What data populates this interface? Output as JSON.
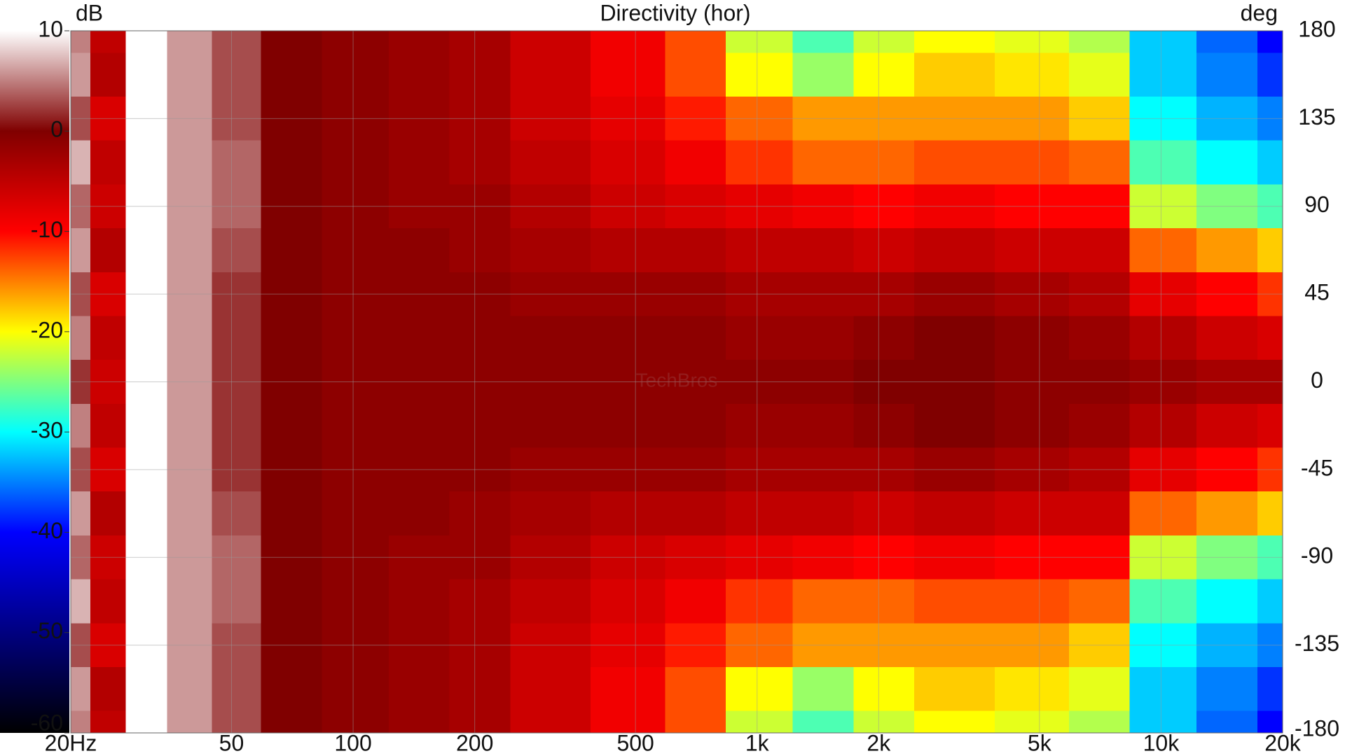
{
  "chart_data": {
    "type": "heatmap",
    "title": "Directivity (hor)",
    "colorbar_label": "dB",
    "y_label": "deg",
    "watermark": "TechBros",
    "x": [
      20,
      25,
      30,
      40,
      50,
      70,
      100,
      150,
      200,
      300,
      500,
      700,
      1000,
      1500,
      2000,
      3000,
      5000,
      7000,
      10000,
      15000,
      20000
    ],
    "y": [
      180,
      157.5,
      135,
      112.5,
      90,
      67.5,
      45,
      22.5,
      0,
      -22.5,
      -45,
      -67.5,
      -90,
      -112.5,
      -135,
      -157.5,
      -180
    ],
    "z": [
      [
        5,
        -5,
        10,
        6,
        3,
        0,
        -1,
        -2,
        -3,
        -6,
        -9,
        -13,
        -22,
        -27,
        -22,
        -20,
        -21,
        -23,
        -32,
        -36,
        -40
      ],
      [
        6,
        -4,
        10,
        6,
        3,
        0,
        -1,
        -2,
        -3,
        -6,
        -9,
        -13,
        -20,
        -24,
        -20,
        -18,
        -19,
        -21,
        -32,
        -35,
        -38
      ],
      [
        3,
        -7,
        10,
        6,
        3,
        0,
        -1,
        -2,
        -3,
        -6,
        -8,
        -11,
        -14,
        -16,
        -16,
        -16,
        -16,
        -18,
        -30,
        -33,
        -35
      ],
      [
        7,
        -5,
        10,
        6,
        4,
        0,
        -1,
        -2,
        -3,
        -5,
        -7,
        -9,
        -12,
        -14,
        -14,
        -13,
        -13,
        -14,
        -27,
        -30,
        -32
      ],
      [
        4,
        -6,
        10,
        6,
        4,
        0,
        -1,
        -2,
        -2,
        -4,
        -6,
        -7,
        -8,
        -9,
        -10,
        -9,
        -10,
        -10,
        -22,
        -25,
        -27
      ],
      [
        6,
        -4,
        10,
        6,
        3,
        0,
        -1,
        -1,
        -2,
        -3,
        -4,
        -4,
        -5,
        -5,
        -6,
        -5,
        -6,
        -6,
        -14,
        -16,
        -18
      ],
      [
        3,
        -7,
        10,
        6,
        2,
        0,
        -1,
        -1,
        -1,
        -2,
        -2,
        -2,
        -3,
        -3,
        -3,
        -2,
        -3,
        -4,
        -8,
        -10,
        -12
      ],
      [
        5,
        -5,
        10,
        6,
        2,
        0,
        -1,
        -1,
        -1,
        -1,
        -1,
        -1,
        -2,
        -2,
        -1,
        0,
        -1,
        -2,
        -4,
        -6,
        -7
      ],
      [
        2,
        -6,
        10,
        6,
        2,
        0,
        -1,
        -1,
        -1,
        -1,
        -1,
        -1,
        -1,
        -1,
        0,
        0,
        -1,
        -1,
        -2,
        -3,
        -3
      ],
      [
        5,
        -5,
        10,
        6,
        2,
        0,
        -1,
        -1,
        -1,
        -1,
        -1,
        -1,
        -2,
        -2,
        -1,
        0,
        -1,
        -2,
        -4,
        -6,
        -7
      ],
      [
        3,
        -7,
        10,
        6,
        2,
        0,
        -1,
        -1,
        -1,
        -2,
        -2,
        -2,
        -3,
        -3,
        -3,
        -2,
        -3,
        -4,
        -8,
        -10,
        -12
      ],
      [
        6,
        -4,
        10,
        6,
        3,
        0,
        -1,
        -1,
        -2,
        -3,
        -4,
        -4,
        -5,
        -5,
        -6,
        -5,
        -6,
        -6,
        -14,
        -16,
        -18
      ],
      [
        4,
        -6,
        10,
        6,
        4,
        0,
        -1,
        -2,
        -2,
        -4,
        -6,
        -7,
        -8,
        -9,
        -10,
        -9,
        -10,
        -10,
        -22,
        -25,
        -27
      ],
      [
        7,
        -5,
        10,
        6,
        4,
        0,
        -1,
        -2,
        -3,
        -5,
        -7,
        -9,
        -12,
        -14,
        -14,
        -13,
        -13,
        -14,
        -27,
        -30,
        -32
      ],
      [
        3,
        -7,
        10,
        6,
        3,
        0,
        -1,
        -2,
        -3,
        -6,
        -8,
        -11,
        -14,
        -16,
        -16,
        -16,
        -16,
        -18,
        -30,
        -33,
        -35
      ],
      [
        6,
        -4,
        10,
        6,
        3,
        0,
        -1,
        -2,
        -3,
        -6,
        -9,
        -13,
        -20,
        -24,
        -20,
        -18,
        -19,
        -21,
        -32,
        -35,
        -38
      ],
      [
        5,
        -5,
        10,
        6,
        3,
        0,
        -1,
        -2,
        -3,
        -6,
        -9,
        -13,
        -22,
        -27,
        -22,
        -20,
        -21,
        -23,
        -32,
        -36,
        -40
      ]
    ],
    "xlim": [
      20,
      20000
    ],
    "x_scale": "log",
    "xticks": [
      {
        "value": 20,
        "label": "20Hz"
      },
      50,
      100,
      200,
      500,
      {
        "value": 1000,
        "label": "1k"
      },
      {
        "value": 2000,
        "label": "2k"
      },
      {
        "value": 5000,
        "label": "5k"
      },
      {
        "value": 10000,
        "label": "10k"
      },
      {
        "value": 20000,
        "label": "20k"
      }
    ],
    "ylim": [
      -180,
      180
    ],
    "yticks": [
      180,
      135,
      90,
      45,
      0,
      -45,
      -90,
      -135,
      -180
    ],
    "zlim": [
      -60,
      10
    ],
    "zticks": [
      10,
      0,
      -10,
      -20,
      -30,
      -40,
      -50,
      -60
    ],
    "colorscale": [
      [
        10,
        "#ffffff"
      ],
      [
        0,
        "#800000"
      ],
      [
        -10,
        "#ff0000"
      ],
      [
        -20,
        "#ffff00"
      ],
      [
        -30,
        "#00ffff"
      ],
      [
        -40,
        "#0000ff"
      ],
      [
        -50,
        "#000080"
      ],
      [
        -60,
        "#000000"
      ]
    ],
    "grid": true
  }
}
